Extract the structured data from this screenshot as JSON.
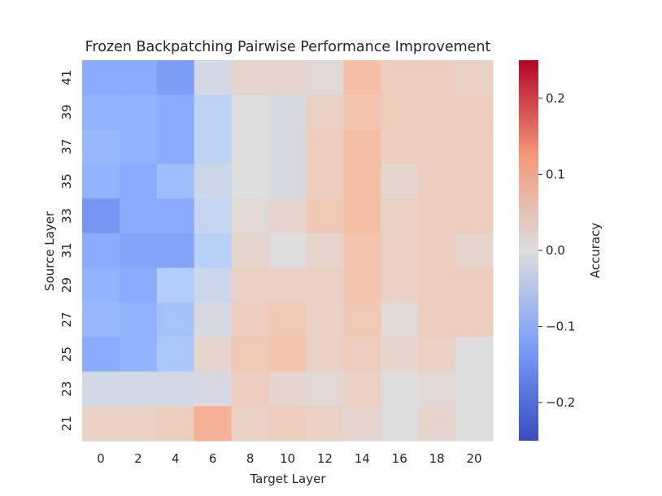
{
  "chart_data": {
    "type": "heatmap",
    "title": "Frozen Backpatching Pairwise Performance Improvement",
    "xlabel": "Target Layer",
    "ylabel": "Source Layer",
    "x_labels": [
      "0",
      "2",
      "4",
      "6",
      "8",
      "10",
      "12",
      "14",
      "16",
      "18",
      "20"
    ],
    "y_labels": [
      "41",
      "39",
      "37",
      "35",
      "33",
      "31",
      "29",
      "27",
      "25",
      "23",
      "21"
    ],
    "values": [
      [
        -0.13,
        -0.13,
        -0.15,
        -0.02,
        0.02,
        0.02,
        0.01,
        0.07,
        0.04,
        0.04,
        0.03
      ],
      [
        -0.12,
        -0.12,
        -0.13,
        -0.05,
        0.0,
        -0.01,
        0.03,
        0.06,
        0.04,
        0.04,
        0.04
      ],
      [
        -0.11,
        -0.12,
        -0.13,
        -0.05,
        0.0,
        -0.01,
        0.04,
        0.07,
        0.04,
        0.04,
        0.04
      ],
      [
        -0.12,
        -0.13,
        -0.1,
        -0.03,
        0.0,
        -0.01,
        0.04,
        0.07,
        0.02,
        0.04,
        0.04
      ],
      [
        -0.16,
        -0.13,
        -0.13,
        -0.04,
        0.01,
        0.02,
        0.05,
        0.07,
        0.03,
        0.04,
        0.04
      ],
      [
        -0.13,
        -0.14,
        -0.14,
        -0.06,
        0.02,
        0.0,
        0.02,
        0.06,
        0.03,
        0.04,
        0.02
      ],
      [
        -0.12,
        -0.13,
        -0.07,
        -0.03,
        0.03,
        0.03,
        0.03,
        0.06,
        0.03,
        0.04,
        0.04
      ],
      [
        -0.11,
        -0.12,
        -0.09,
        -0.01,
        0.04,
        0.05,
        0.03,
        0.05,
        0.01,
        0.04,
        0.04
      ],
      [
        -0.13,
        -0.12,
        -0.08,
        0.02,
        0.05,
        0.06,
        0.03,
        0.04,
        0.02,
        0.03,
        0.0
      ],
      [
        -0.02,
        -0.02,
        -0.02,
        -0.01,
        0.04,
        0.02,
        0.01,
        0.03,
        0.0,
        0.01,
        0.0
      ],
      [
        0.03,
        0.03,
        0.04,
        0.09,
        0.03,
        0.04,
        0.03,
        0.02,
        0.0,
        0.02,
        0.0
      ]
    ],
    "colormap": "coolwarm",
    "vmin": -0.25,
    "vmax": 0.25,
    "colorbar": {
      "label": "Accuracy",
      "ticks": [
        0.2,
        0.1,
        0.0,
        -0.1,
        -0.2
      ],
      "tick_labels": [
        "0.2",
        "0.1",
        "0.0",
        "−0.1",
        "−0.2"
      ]
    },
    "grid": false,
    "legend": "colorbar-right"
  }
}
